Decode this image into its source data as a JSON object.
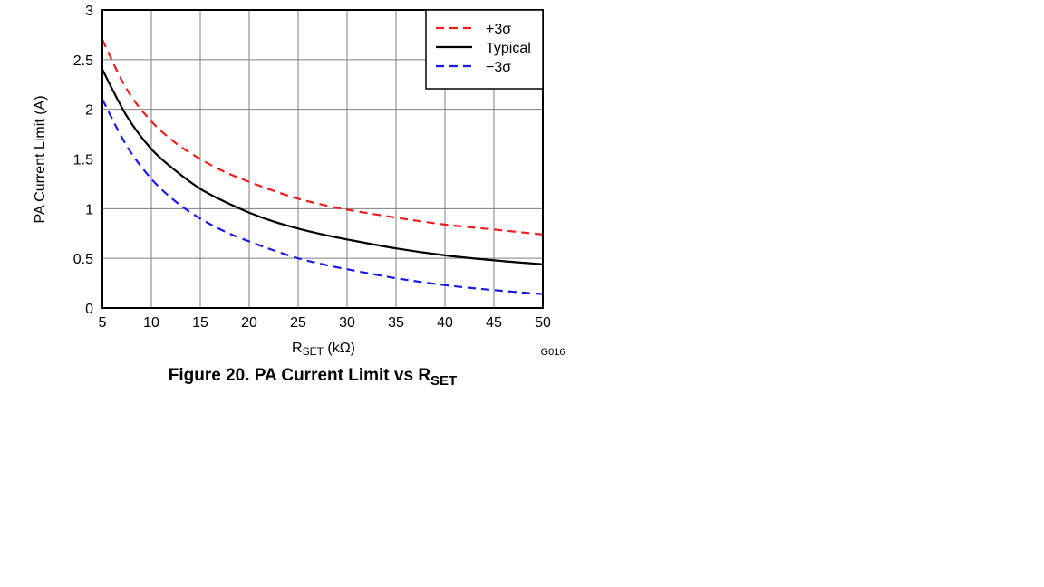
{
  "chart_data": {
    "type": "line",
    "xlabel": {
      "main": "R",
      "sub": "SET",
      "unit": " (kΩ)"
    },
    "ylabel": "PA Current Limit (A)",
    "xlim": [
      5,
      50
    ],
    "ylim": [
      0,
      3
    ],
    "x_ticks": [
      "5",
      "10",
      "15",
      "20",
      "25",
      "30",
      "35",
      "40",
      "45",
      "50"
    ],
    "y_ticks": [
      "0",
      "0.5",
      "1",
      "1.5",
      "2",
      "2.5",
      "3"
    ],
    "grid": true,
    "legend_position": "top-right",
    "series": [
      {
        "name": "+3σ",
        "color": "#ee1c1c",
        "style": "dashed",
        "x": [
          5,
          7.5,
          10,
          12.5,
          15,
          17.5,
          20,
          22.5,
          25,
          27.5,
          30,
          35,
          40,
          45,
          50
        ],
        "y": [
          2.7,
          2.2,
          1.88,
          1.66,
          1.5,
          1.37,
          1.27,
          1.18,
          1.1,
          1.04,
          0.99,
          0.91,
          0.84,
          0.79,
          0.74
        ]
      },
      {
        "name": "Typical",
        "color": "#000000",
        "style": "solid",
        "x": [
          5,
          7.5,
          10,
          12.5,
          15,
          17.5,
          20,
          22.5,
          25,
          27.5,
          30,
          35,
          40,
          45,
          50
        ],
        "y": [
          2.4,
          1.93,
          1.6,
          1.38,
          1.2,
          1.07,
          0.96,
          0.87,
          0.8,
          0.74,
          0.69,
          0.6,
          0.53,
          0.48,
          0.44
        ]
      },
      {
        "name": "−3σ",
        "color": "#1a1ae6",
        "style": "dashed",
        "x": [
          5,
          7.5,
          10,
          12.5,
          15,
          17.5,
          20,
          22.5,
          25,
          27.5,
          30,
          35,
          40,
          45,
          50
        ],
        "y": [
          2.1,
          1.63,
          1.3,
          1.07,
          0.9,
          0.77,
          0.67,
          0.58,
          0.5,
          0.44,
          0.39,
          0.3,
          0.23,
          0.18,
          0.14
        ]
      }
    ]
  },
  "figure_code": "G016",
  "caption": {
    "main": "Figure 20. PA Current Limit vs R",
    "sub": "SET"
  }
}
